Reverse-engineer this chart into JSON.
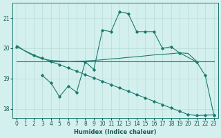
{
  "x": [
    0,
    1,
    2,
    3,
    4,
    5,
    6,
    7,
    8,
    9,
    10,
    11,
    12,
    13,
    14,
    15,
    16,
    17,
    18,
    19,
    20,
    21,
    22,
    23
  ],
  "line_zigzag": [
    null,
    null,
    null,
    19.1,
    18.85,
    18.4,
    18.75,
    18.55,
    19.55,
    19.3,
    20.6,
    20.55,
    21.2,
    21.15,
    20.55,
    20.55,
    20.55,
    20.0,
    20.05,
    19.85,
    null,
    19.55,
    19.1,
    17.8
  ],
  "line_slow_decline": [
    20.1,
    19.9,
    19.75,
    19.65,
    19.6,
    19.58,
    19.56,
    19.57,
    19.58,
    19.6,
    19.62,
    19.65,
    19.67,
    19.7,
    19.72,
    19.75,
    19.78,
    19.8,
    19.82,
    19.85,
    19.83,
    19.57,
    null,
    null
  ],
  "line_flat": [
    19.57,
    19.57,
    19.57,
    19.57,
    19.57,
    19.57,
    19.57,
    19.57,
    19.57,
    19.57,
    19.57,
    19.57,
    19.57,
    19.57,
    19.57,
    19.57,
    19.57,
    19.57,
    19.57,
    19.57,
    19.57,
    19.57,
    19.57,
    19.57
  ],
  "line_diag_x": [
    0,
    2,
    3,
    4,
    5,
    6,
    7,
    8,
    9,
    10,
    11,
    12,
    13,
    14,
    15,
    16,
    17,
    18,
    19,
    20,
    21,
    22,
    23
  ],
  "line_diag_y": [
    20.05,
    19.78,
    19.67,
    19.56,
    19.46,
    19.35,
    19.24,
    19.13,
    19.02,
    18.91,
    18.8,
    18.69,
    18.58,
    18.47,
    18.36,
    18.25,
    18.14,
    18.03,
    17.92,
    17.81,
    17.78,
    17.79,
    17.8
  ],
  "ylim": [
    17.7,
    21.5
  ],
  "xlim": [
    -0.5,
    23.5
  ],
  "yticks": [
    18,
    19,
    20,
    21
  ],
  "xticks": [
    0,
    1,
    2,
    3,
    4,
    5,
    6,
    7,
    8,
    9,
    10,
    11,
    12,
    13,
    14,
    15,
    16,
    17,
    18,
    19,
    20,
    21,
    22,
    23
  ],
  "xlabel": "Humidex (Indice chaleur)",
  "line_color": "#1a7a6e",
  "bg_color": "#d4f0ee",
  "grid_color": "#b8dbd8",
  "font_color": "#1a5a50"
}
